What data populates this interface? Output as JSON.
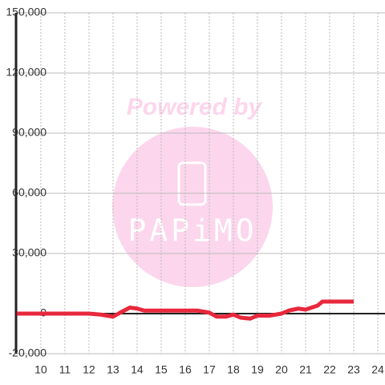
{
  "chart_data": {
    "type": "line",
    "watermark": {
      "title": "Powered by",
      "brand": "PAPiMO"
    },
    "x": [
      9,
      10,
      11,
      12,
      12.5,
      13,
      13.3,
      13.7,
      14,
      14.3,
      15,
      16,
      16.5,
      17,
      17.3,
      17.7,
      18,
      18.3,
      18.7,
      19,
      19.5,
      20,
      20.3,
      20.7,
      21,
      21.5,
      21.7,
      22,
      23
    ],
    "series": [
      {
        "color": "#e8283c",
        "values": [
          0,
          0,
          0,
          0,
          -500,
          -1500,
          500,
          3000,
          2500,
          1500,
          1500,
          1500,
          1500,
          500,
          -1500,
          -1500,
          -500,
          -2000,
          -2500,
          -1000,
          -1000,
          0,
          1500,
          2500,
          2000,
          4000,
          6000,
          6000,
          6000
        ]
      }
    ],
    "xlim": [
      8.97,
      24.3
    ],
    "xticks": [
      10,
      11,
      12,
      13,
      14,
      15,
      16,
      17,
      18,
      19,
      20,
      21,
      22,
      23,
      24
    ],
    "ylim": [
      -20000,
      150000
    ],
    "yticks": [
      {
        "value": -20000,
        "label": "-20,000"
      },
      0,
      {
        "value": 30000,
        "label": "30,000"
      },
      {
        "value": 60000,
        "label": "60,000"
      },
      {
        "value": 90000,
        "label": "90,000"
      },
      {
        "value": 120000,
        "label": "120,000"
      },
      {
        "value": 150000,
        "label": "150,000"
      }
    ],
    "grid": true
  }
}
